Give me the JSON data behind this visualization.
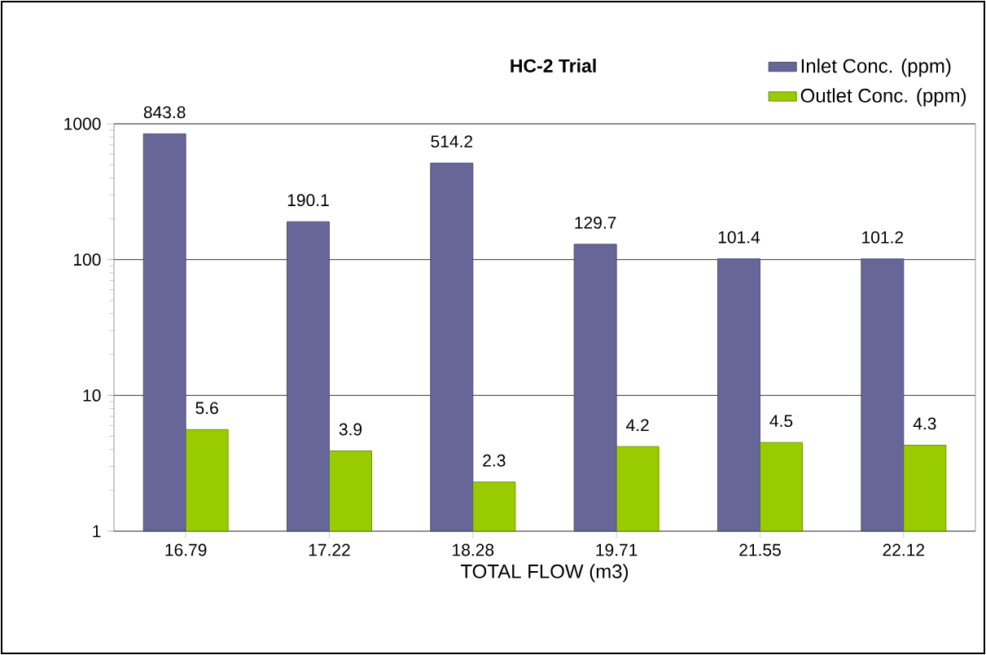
{
  "chart_data": {
    "type": "bar",
    "title": "HC-2 Trial",
    "xlabel": "TOTAL FLOW (m3)",
    "categories": [
      "16.79",
      "17.22",
      "18.28",
      "19.71",
      "21.55",
      "22.12"
    ],
    "series": [
      {
        "name": "Inlet Conc. (ppm)",
        "color": "#666699",
        "values": [
          843.8,
          190.1,
          514.2,
          129.7,
          101.4,
          101.2
        ]
      },
      {
        "name": "Outlet Conc. (ppm)",
        "color": "#99cc00",
        "values": [
          5.6,
          3.9,
          2.3,
          4.2,
          4.5,
          4.3
        ]
      }
    ],
    "log": true,
    "ylim": [
      1,
      1000
    ],
    "yticks": [
      1,
      10,
      100,
      1000
    ],
    "grid": "y",
    "legend": "top right",
    "data_labels": true
  }
}
